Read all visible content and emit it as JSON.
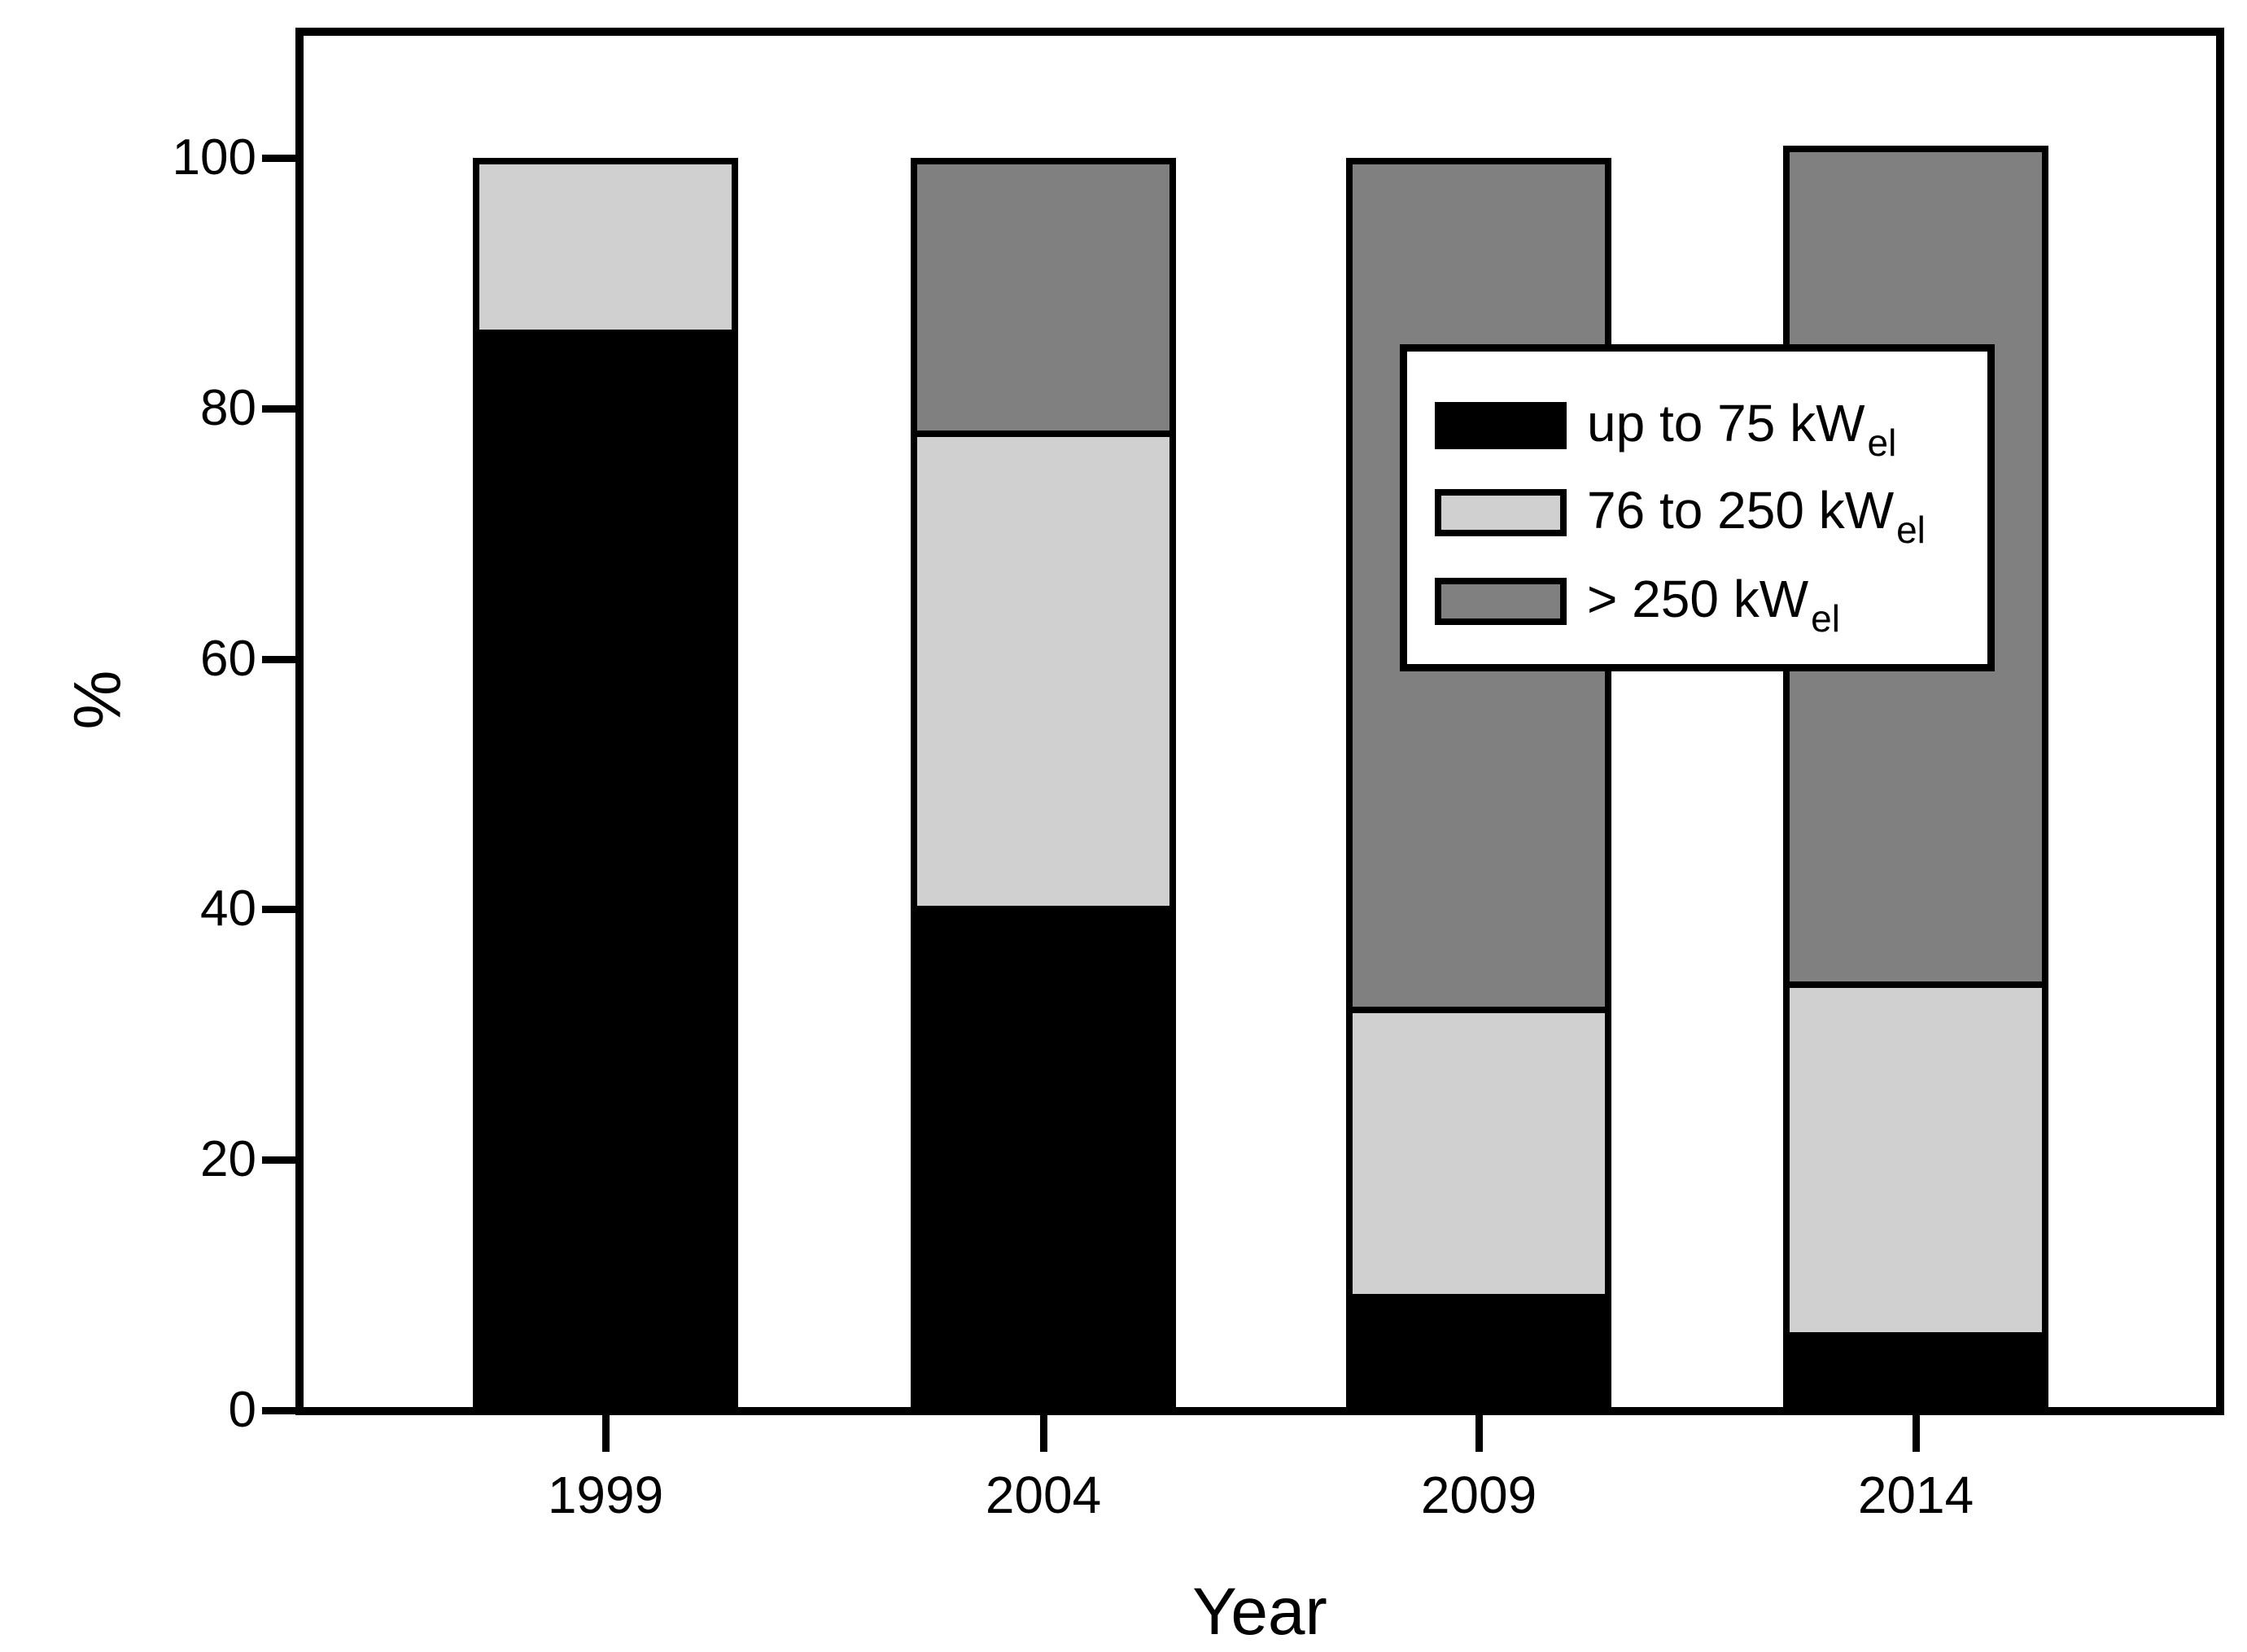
{
  "chart_data": {
    "type": "bar",
    "stacked": true,
    "title": "",
    "xlabel": "Year",
    "ylabel": "%",
    "categories": [
      "1999",
      "2004",
      "2009",
      "2014"
    ],
    "series": [
      {
        "name": "up to 75 kWel",
        "legend_main": "up to 75 kW",
        "legend_sub": "el",
        "color": "#000000",
        "values": [
          86,
          40,
          9,
          6
        ]
      },
      {
        "name": "76 to 250 kWel",
        "legend_main": "76 to 250 kW",
        "legend_sub": "el",
        "color": "#d0d0d0",
        "values": [
          14,
          38,
          23,
          28
        ]
      },
      {
        "name": "> 250 kWel",
        "legend_main": "> 250 kW",
        "legend_sub": "el",
        "color": "#808080",
        "values": [
          0,
          22,
          68,
          67
        ]
      }
    ],
    "stack_totals": [
      100,
      100,
      100,
      101
    ],
    "yticks": [
      0,
      20,
      40,
      60,
      80,
      100
    ],
    "ylim": [
      0,
      110
    ],
    "grid": false,
    "legend_position": "inside-upper-right",
    "outline_color": "#000000",
    "background_color": "#ffffff"
  }
}
